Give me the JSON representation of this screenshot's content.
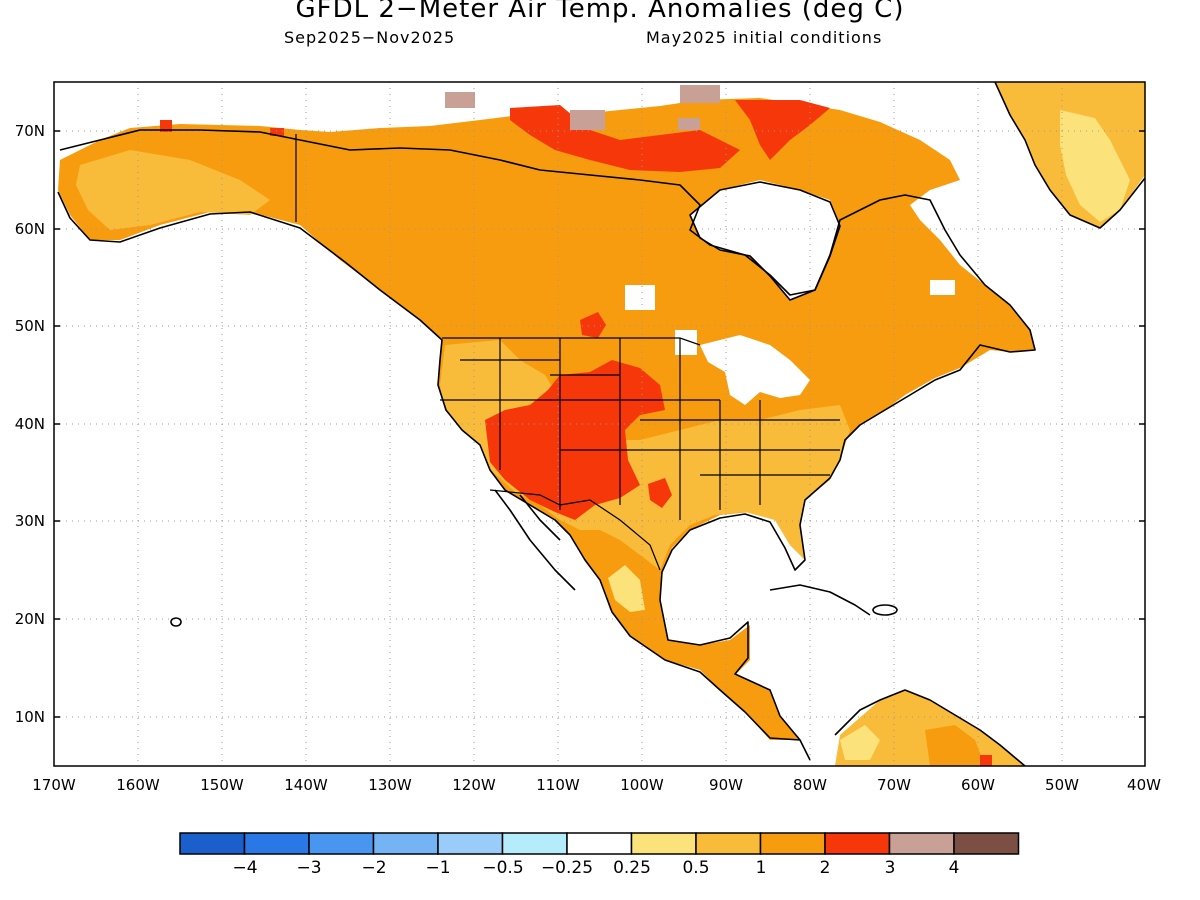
{
  "title": "GFDL 2−Meter Air Temp. Anomalies (deg C)",
  "subtitle_left": "Sep2025−Nov2025",
  "subtitle_right": "May2025 initial conditions",
  "lat_labels": [
    "70N",
    "60N",
    "50N",
    "40N",
    "30N",
    "20N",
    "10N"
  ],
  "lon_labels": [
    "170W",
    "160W",
    "150W",
    "140W",
    "130W",
    "120W",
    "110W",
    "100W",
    "90W",
    "80W",
    "70W",
    "60W",
    "50W",
    "40W"
  ],
  "colorbar": {
    "colors": [
      "#1a5fcc",
      "#2a78e6",
      "#4896ef",
      "#74b4f4",
      "#99ccf8",
      "#b4ecfb",
      "#ffffff",
      "#fce27a",
      "#f9bb3a",
      "#f79c0e",
      "#f5370a",
      "#c8a096",
      "#7b4f44"
    ],
    "labels": [
      "−4",
      "−3",
      "−2",
      "−1",
      "−0.5",
      "−0.25",
      "0.25",
      "0.5",
      "1",
      "2",
      "3",
      "4"
    ]
  },
  "colors": {
    "light_yellow": "#fce27a",
    "light_orange": "#f9bb3a",
    "orange": "#f79c0e",
    "red": "#f5370a",
    "pink_brown": "#c8a096",
    "white": "#ffffff"
  }
}
